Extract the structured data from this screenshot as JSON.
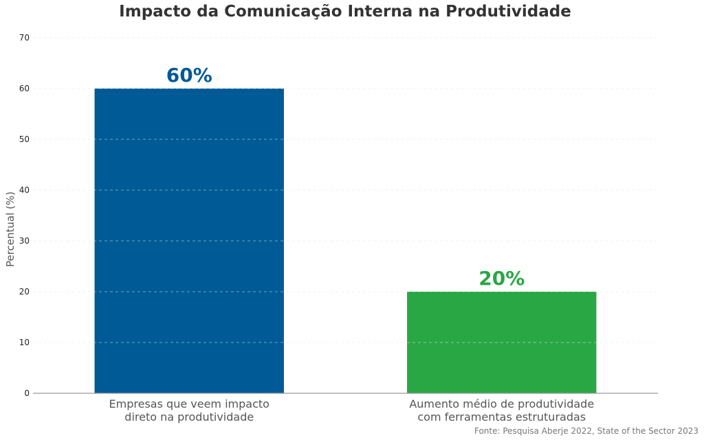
{
  "chart_data": {
    "type": "bar",
    "title": "Impacto da Comunicação Interna na Produtividade",
    "ylabel": "Percentual (%)",
    "xlabel": "",
    "ylim": [
      0,
      70
    ],
    "yticks": [
      0,
      10,
      20,
      30,
      40,
      50,
      60,
      70
    ],
    "grid": true,
    "categories": [
      [
        "Empresas que veem impacto",
        "direto na produtividade"
      ],
      [
        "Aumento médio de produtividade",
        "com ferramentas estruturadas"
      ]
    ],
    "values": [
      60,
      20
    ],
    "value_labels": [
      "60%",
      "20%"
    ],
    "colors": [
      "#005a96",
      "#2aa745"
    ],
    "source": "Fonte: Pesquisa Aberje 2022, State of the Sector 2023"
  }
}
